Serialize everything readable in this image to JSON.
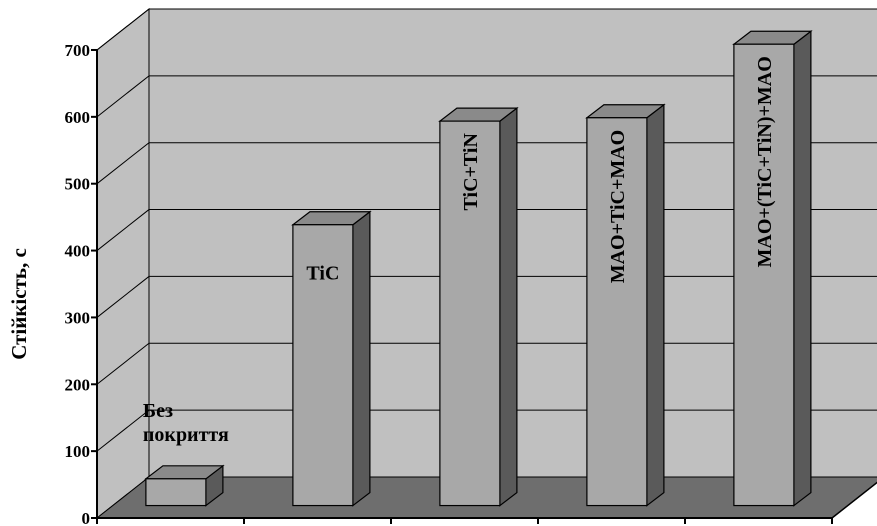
{
  "chart_data": {
    "type": "bar",
    "categories": [
      "Без покриття",
      "TiC",
      "TiC+TiN",
      "MAO+TiC+MAO",
      "MAO+(TiC+TiN)+MAO"
    ],
    "category_label_lines": [
      [
        "Без",
        "покриття"
      ],
      [
        "TiC"
      ],
      [
        "TiC+TiN"
      ],
      [
        "MAO+TiC+MAO"
      ],
      [
        "MAO+(TiC+TiN)+MAO"
      ]
    ],
    "category_label_orientation": [
      "horizontal",
      "horizontal",
      "vertical",
      "vertical",
      "vertical"
    ],
    "values": [
      40,
      420,
      575,
      580,
      690
    ],
    "title": "",
    "xlabel": "",
    "ylabel": "Стійкість, с",
    "ylim": [
      0,
      700
    ],
    "yticks": [
      0,
      100,
      200,
      300,
      400,
      500,
      600,
      700
    ],
    "grid": true,
    "legend": "none",
    "style": "3d-columns"
  },
  "colors": {
    "wall": "#c0c0c0",
    "floor": "#6e6e6e",
    "bar_front": "#a8a8a8",
    "bar_top": "#8a8a8a",
    "bar_side": "#5a5a5a",
    "grid": "#000000"
  }
}
